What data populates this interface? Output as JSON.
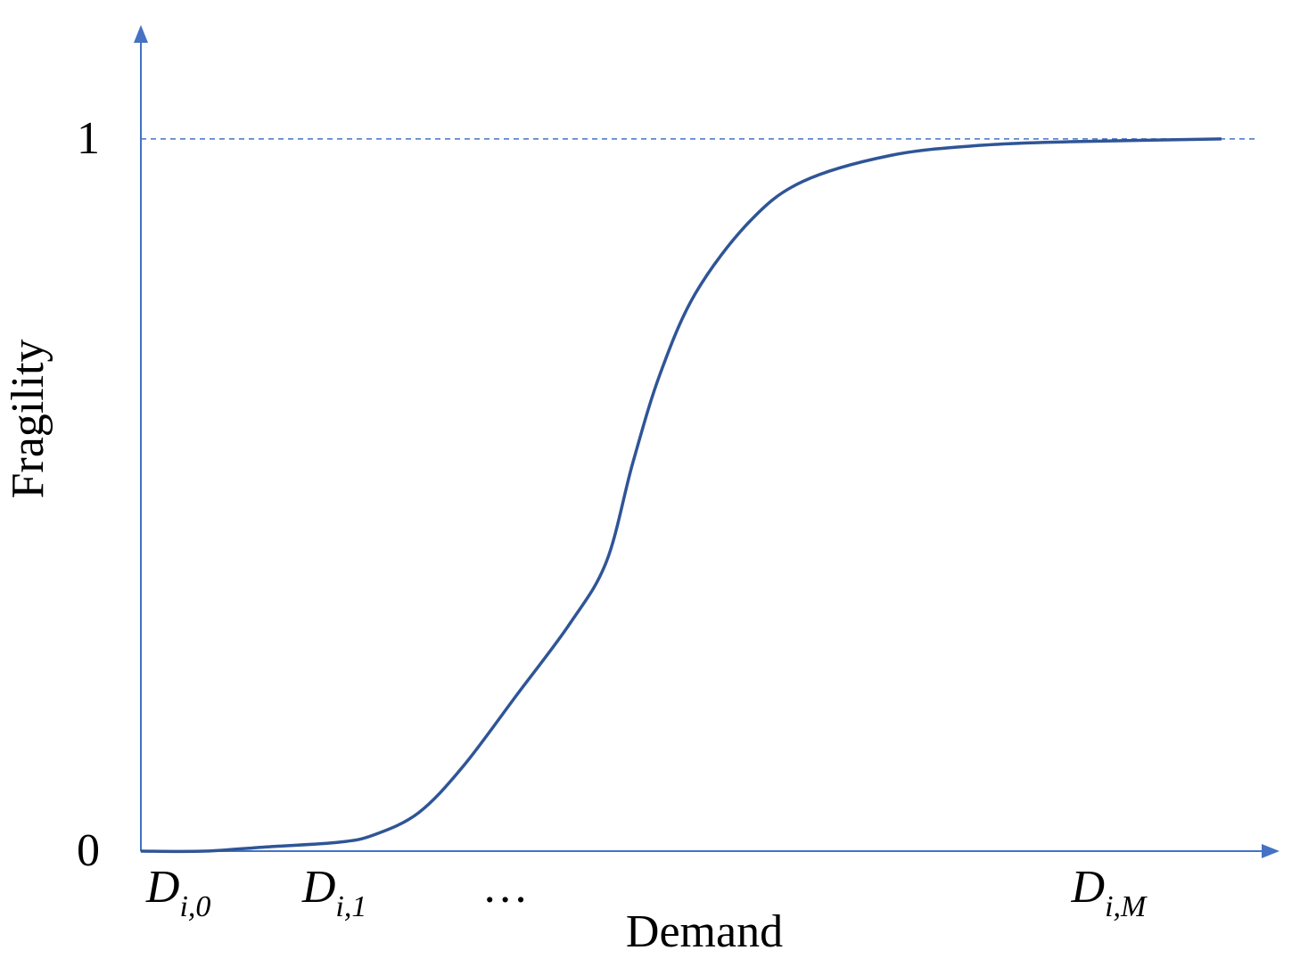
{
  "chart_data": {
    "type": "line",
    "x_label": "Demand",
    "y_label": "Fragility",
    "xlim": [
      0,
      100
    ],
    "ylim": [
      0,
      1.16
    ],
    "yticks": [
      0,
      1
    ],
    "xticks": [
      {
        "value": 3.3,
        "label": "D",
        "subscript": "i,0"
      },
      {
        "value": 17,
        "label": "D",
        "subscript": "i,1"
      },
      {
        "value": 32,
        "label": "…"
      },
      {
        "value": 85,
        "label": "D",
        "subscript": "i,M"
      }
    ],
    "grid": "dashed",
    "axis_color": "#4472c4",
    "series": [
      {
        "color": "#2f5597",
        "x": [
          0,
          5.6,
          11.1,
          17.4,
          20.5,
          24.4,
          28.3,
          33,
          37.7,
          40.9,
          43.2,
          45.6,
          48.7,
          53.4,
          58.1,
          65.9,
          73.8,
          81.6,
          94.9
        ],
        "values": [
          0,
          0,
          0.006,
          0.0125,
          0.023,
          0.054,
          0.119,
          0.219,
          0.32,
          0.407,
          0.545,
          0.67,
          0.783,
          0.883,
          0.94,
          0.977,
          0.991,
          0.996,
          1
        ]
      }
    ]
  }
}
